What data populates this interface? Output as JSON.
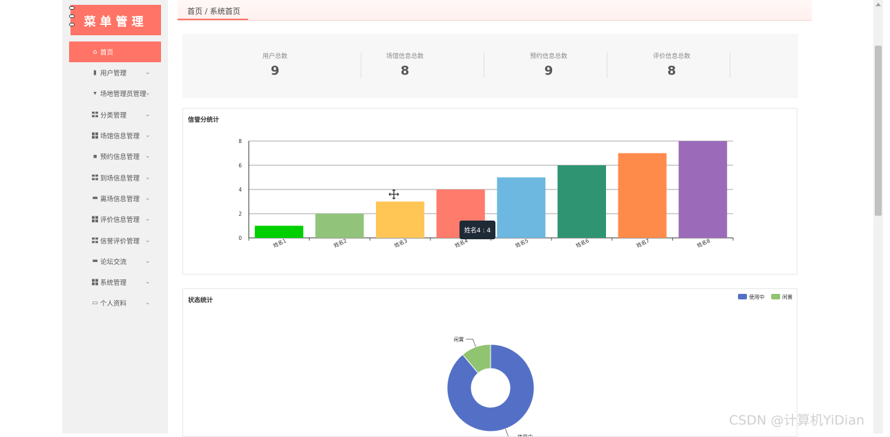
{
  "sidebar": {
    "title": "菜单管理",
    "items": [
      {
        "label": "首页",
        "icon": "home-icon",
        "active": true
      },
      {
        "label": "用户管理",
        "icon": "clipboard-icon"
      },
      {
        "label": "场地管理员管理",
        "icon": "shield-icon"
      },
      {
        "label": "分类管理",
        "icon": "grid-icon"
      },
      {
        "label": "场馆信息管理",
        "icon": "grid-icon"
      },
      {
        "label": "预约信息管理",
        "icon": "image-icon"
      },
      {
        "label": "到场信息管理",
        "icon": "grid-icon"
      },
      {
        "label": "离场信息管理",
        "icon": "cake-icon"
      },
      {
        "label": "评价信息管理",
        "icon": "grid-icon"
      },
      {
        "label": "信誉评价管理",
        "icon": "grid-icon"
      },
      {
        "label": "论坛交流",
        "icon": "chat-icon"
      },
      {
        "label": "系统管理",
        "icon": "grid-icon"
      },
      {
        "label": "个人资料",
        "icon": "card-icon"
      }
    ]
  },
  "breadcrumb": "首页 / 系统首页",
  "stats": [
    {
      "label": "用户总数",
      "value": "9"
    },
    {
      "label": "场馆信息总数",
      "value": "8"
    },
    {
      "label": "预约信息总数",
      "value": "9"
    },
    {
      "label": "评价信息总数",
      "value": "8"
    }
  ],
  "colors": {
    "accent": "#ff7466",
    "sidebar_bg": "#f1f1f1"
  },
  "chart_data": [
    {
      "type": "bar",
      "title": "信誉分统计",
      "categories": [
        "姓名1",
        "姓名2",
        "姓名3",
        "姓名4",
        "姓名5",
        "姓名6",
        "姓名7",
        "姓名8"
      ],
      "values": [
        1,
        2,
        3,
        4,
        5,
        6,
        7,
        8
      ],
      "colors": [
        "#00d000",
        "#91c47a",
        "#ffc656",
        "#ff7b6b",
        "#6cb8e0",
        "#2f9472",
        "#ff8b4b",
        "#9b6bba"
      ],
      "ylim": [
        0,
        8
      ],
      "yticks": [
        "0",
        "2",
        "4",
        "6",
        "8"
      ],
      "grid": true,
      "tooltip": "姓名4 : 4"
    },
    {
      "type": "pie",
      "title": "状态统计",
      "categories": [
        "使用中",
        "闲置"
      ],
      "values": [
        8,
        1
      ],
      "colors": [
        "#5470c6",
        "#91c471"
      ],
      "legend": "top-right",
      "legend_labels": [
        "使用中",
        "闲置"
      ]
    }
  ],
  "watermark": "CSDN @计算机YiDian"
}
